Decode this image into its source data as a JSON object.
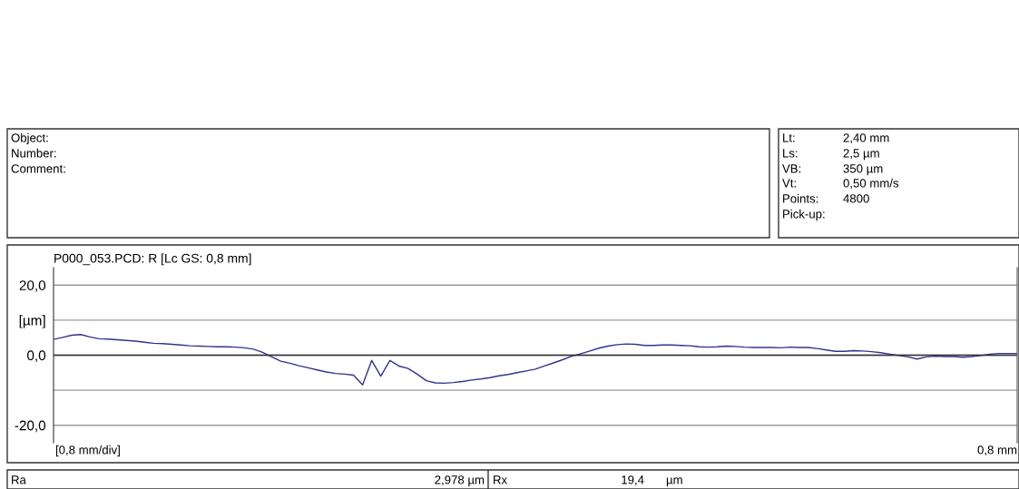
{
  "chart_data": {
    "type": "line",
    "title": "P000_053.PCD: R [Lc GS: 0,8 mm]",
    "categories": [
      null,
      null,
      null,
      null,
      null,
      null,
      null,
      null,
      null,
      null,
      null,
      null,
      null,
      null,
      null,
      null,
      null,
      null,
      null,
      null,
      null,
      null,
      null,
      null,
      null,
      null,
      null,
      null,
      null,
      null,
      null,
      null,
      null,
      null,
      null,
      null,
      null,
      null,
      null,
      null,
      null,
      null,
      null,
      null,
      null,
      null,
      null,
      null,
      null,
      null,
      null,
      null,
      null,
      null,
      null,
      null,
      null,
      null,
      null,
      null,
      null,
      null,
      null,
      null,
      null,
      null,
      null,
      null,
      null,
      null,
      null,
      null,
      null,
      null,
      null,
      null,
      null,
      null,
      null,
      null,
      null,
      null,
      null,
      null,
      null,
      null,
      null,
      null,
      null,
      null,
      null,
      null,
      null,
      null,
      null,
      null,
      null,
      null,
      null,
      null,
      null,
      null,
      null,
      null,
      null,
      null,
      null
    ],
    "series": [
      {
        "color": "#33338f",
        "values": [
          4.5,
          5.1,
          5.7,
          5.9,
          5.2,
          4.7,
          4.6,
          4.4,
          4.2,
          4.0,
          3.7,
          3.4,
          3.3,
          3.1,
          2.9,
          2.7,
          2.6,
          2.5,
          2.4,
          2.4,
          2.3,
          2.1,
          1.7,
          0.8,
          -0.5,
          -1.7,
          -2.3,
          -3.0,
          -3.6,
          -4.2,
          -4.8,
          -5.2,
          -5.4,
          -5.7,
          -8.5,
          -1.5,
          -6.0,
          -1.5,
          -3.1,
          -3.8,
          -5.4,
          -7.3,
          -7.9,
          -8.0,
          -7.8,
          -7.5,
          -7.1,
          -6.8,
          -6.4,
          -5.9,
          -5.5,
          -5.0,
          -4.5,
          -4.0,
          -3.1,
          -2.2,
          -1.3,
          -0.3,
          0.4,
          1.2,
          2.0,
          2.6,
          3.0,
          3.2,
          3.1,
          2.8,
          2.8,
          2.9,
          2.9,
          2.8,
          2.7,
          2.4,
          2.3,
          2.4,
          2.6,
          2.5,
          2.3,
          2.2,
          2.2,
          2.2,
          2.1,
          2.3,
          2.2,
          2.2,
          1.9,
          1.5,
          1.1,
          1.1,
          1.3,
          1.2,
          1.0,
          0.7,
          0.3,
          -0.1,
          -0.5,
          -1.1,
          -0.5,
          -0.3,
          -0.4,
          -0.4,
          -0.6,
          -0.4,
          -0.1,
          0.3,
          0.5,
          0.5,
          0.5
        ]
      }
    ],
    "ylim": [
      -25,
      25
    ],
    "yticks": [
      {
        "value": 20,
        "label": "20,0"
      },
      {
        "value": 10,
        "label": "[µm]"
      },
      {
        "value": 0,
        "label": "0,0"
      },
      {
        "value": -10,
        "label": null
      },
      {
        "value": -20,
        "label": "-20,0"
      }
    ],
    "grid": "y",
    "ref_lines": [
      {
        "axis": "y",
        "value": 0,
        "color": "#333333"
      }
    ],
    "marker": "none",
    "line_style": "solid",
    "annotations": [
      "[0,8 mm/div]",
      "0,8 mm",
      "Object:",
      "Number:",
      "Comment:",
      "Lt:",
      "2,40 mm",
      "Ls:",
      "2,5 µm",
      "VB:",
      "350 µm",
      "Vt:",
      "0,50 mm/s",
      "Points:",
      "4800",
      "Pick-up:",
      "Ra",
      "2,978 µm",
      "Rx",
      "19,4",
      "µm"
    ]
  }
}
